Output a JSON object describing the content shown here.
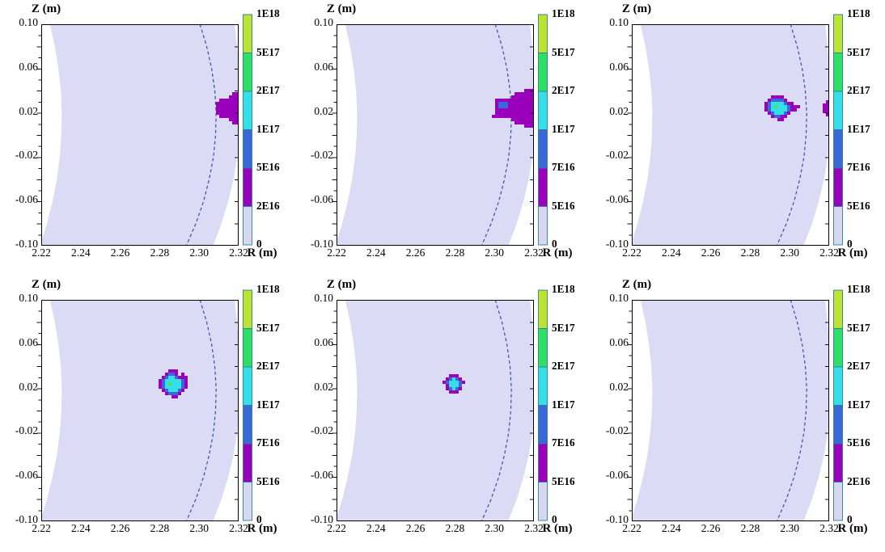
{
  "figure": {
    "kind": "2x3 grid of poloidal cross-section density maps (R-Z plane) with discrete colorbars",
    "background": "#ffffff"
  },
  "chart_data": {
    "type": "heatmap",
    "grid": {
      "rows": 2,
      "cols": 3
    },
    "xlabel": "R (m)",
    "ylabel": "Z (m)",
    "xlim": [
      2.22,
      2.32
    ],
    "ylim": [
      -0.1,
      0.1
    ],
    "xticks": {
      "values": [
        2.22,
        2.24,
        2.26,
        2.28,
        2.3,
        2.32
      ],
      "labels": [
        "2.22",
        "2.24",
        "2.26",
        "2.28",
        "2.30",
        "2.32"
      ]
    },
    "yticks": {
      "values": [
        0.1,
        0.06,
        0.02,
        -0.02,
        -0.06,
        -0.1
      ],
      "labels": [
        "0.10",
        "0.06",
        "0.02",
        "-0.02",
        "-0.06",
        "-0.10"
      ]
    },
    "y_minor_step": 0.01,
    "colors": {
      "plasma_region": "#dcdbf6",
      "separatrix": "#3b4f9b",
      "plot_border": "#000000",
      "tick": "#111111",
      "colorbar_border": "#2f7f90",
      "colorbar_segments_top_to_bottom": [
        "#bce332",
        "#2edf66",
        "#35dfe8",
        "#3a68d8",
        "#9a00bc",
        "#d8d7f2"
      ]
    },
    "colorbar_scales": {
      "A": [
        "1E18",
        "5E17",
        "2E17",
        "1E17",
        "5E16",
        "2E16",
        "0"
      ],
      "B": [
        "1E18",
        "5E17",
        "2E17",
        "1E17",
        "7E16",
        "5E16",
        "0"
      ]
    },
    "cell_palette": {
      "P": "#9a00bc",
      "B": "#3a68d8",
      "C": "#35dfe8",
      "G": "#55df55"
    },
    "plasma_left_boundary_RZ": [
      [
        2.2244,
        0.1
      ],
      [
        2.2269,
        0.08
      ],
      [
        2.2287,
        0.06
      ],
      [
        2.2299,
        0.04
      ],
      [
        2.2304,
        0.02
      ],
      [
        2.2302,
        0.0
      ],
      [
        2.2294,
        -0.02
      ],
      [
        2.2279,
        -0.04
      ],
      [
        2.2257,
        -0.06
      ],
      [
        2.2229,
        -0.08
      ],
      [
        2.2194,
        -0.1
      ]
    ],
    "plasma_right_boundary_RZ": [
      [
        2.318,
        0.1
      ],
      [
        2.3192,
        0.08
      ],
      [
        2.32,
        0.06
      ],
      [
        2.3205,
        0.04
      ],
      [
        2.3207,
        0.02
      ],
      [
        2.3204,
        0.0
      ],
      [
        2.3193,
        -0.02
      ],
      [
        2.3174,
        -0.04
      ],
      [
        2.3147,
        -0.06
      ],
      [
        2.3113,
        -0.08
      ],
      [
        2.307,
        -0.1
      ]
    ],
    "separatrix_RZ": [
      [
        2.3004,
        0.1
      ],
      [
        2.3038,
        0.08
      ],
      [
        2.3063,
        0.06
      ],
      [
        2.3079,
        0.04
      ],
      [
        2.3086,
        0.02
      ],
      [
        2.3083,
        0.0
      ],
      [
        2.3072,
        -0.02
      ],
      [
        2.3051,
        -0.04
      ],
      [
        2.3022,
        -0.06
      ],
      [
        2.2983,
        -0.08
      ],
      [
        2.2935,
        -0.1
      ]
    ],
    "panels": [
      {
        "name": "panel-1",
        "scale": "A",
        "blobs": [
          {
            "anchor": "right",
            "cz": 0.024,
            "grid": [
              "......PP",
              ".....PPP",
              "..PPPPPP",
              ".PPPPPPP",
              ".PPPPPPP",
              ".PPPPPPP",
              ".PPPPPPP",
              "..PPPPPP",
              ".....PPP",
              "......PP"
            ]
          }
        ]
      },
      {
        "name": "panel-2",
        "scale": "B",
        "blobs": [
          {
            "anchor": "right",
            "cz": 0.024,
            "grid": [
              "..........PPP",
              ".......PPPPPP",
              "......PPPPPPP",
              ".PPPPPPPPPPPP",
              ".PBBBPPPPPPPP",
              ".PBBBPPPPPPPP",
              ".PPPPPPPPPPPP",
              ".PPPPPPPPPPPP",
              "PPPPPPPPPPPPP",
              "......PPPPPPP",
              ".......PPPPPP",
              "..........PPP"
            ]
          }
        ]
      },
      {
        "name": "panel-3",
        "scale": "B",
        "blobs": [
          {
            "anchor": "free",
            "cx": 2.2955,
            "cz": 0.024,
            "grid": [
              "...PPPP.....",
              "..PBBBBP....",
              ".PBCCCCBPP..",
              ".PBCGCCCBPPP",
              ".PBCCCCCBPP.",
              "..PBCCCBP...",
              "...PBBPP....",
              ".....PP....."
            ]
          },
          {
            "anchor": "right",
            "cz": 0.024,
            "grid": [
              ".P",
              "PP",
              "PP",
              "PP",
              ".P"
            ]
          }
        ]
      },
      {
        "name": "panel-4",
        "scale": "B",
        "blobs": [
          {
            "anchor": "free",
            "cx": 2.287,
            "cz": 0.024,
            "grid": [
              "....PPP....",
              "...PBBP.P..",
              "..PBCCBPPP.",
              ".PBCCCCCBP.",
              ".PBCGCCCBP.",
              ".PBCCCCCBP.",
              "..PBCCCBP..",
              "...PBBBP...",
              ".....PP...."
            ]
          }
        ]
      },
      {
        "name": "panel-5",
        "scale": "B",
        "blobs": [
          {
            "anchor": "free",
            "cx": 2.2795,
            "cz": 0.024,
            "grid": [
              "..PPP..",
              ".PBCBP.",
              "PBCCCBP",
              ".PCCCB.",
              ".PBCBP.",
              "..PPP.."
            ]
          }
        ]
      },
      {
        "name": "panel-6",
        "scale": "A",
        "blobs": []
      }
    ]
  }
}
